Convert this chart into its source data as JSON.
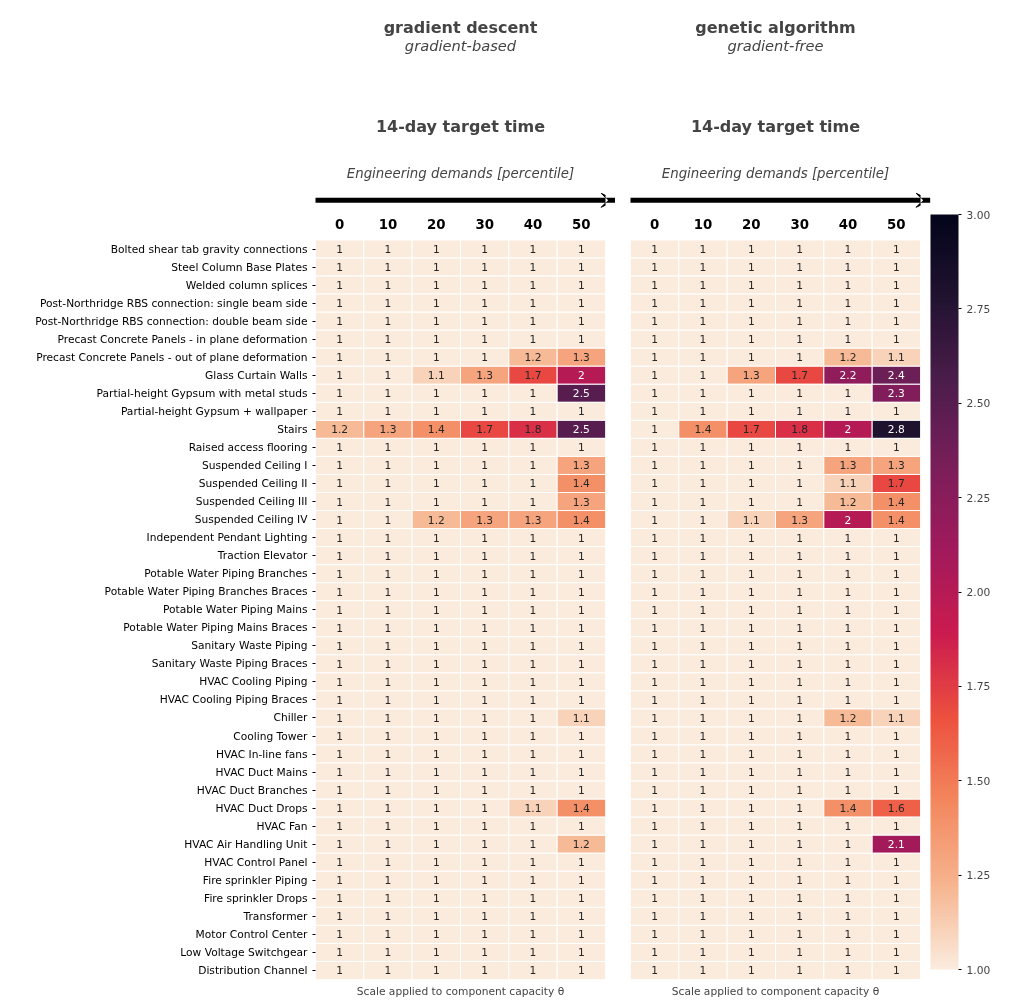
{
  "chart_data": [
    {
      "type": "heatmap",
      "xlabel": "Scale applied to component capacity θ",
      "data_labels": true,
      "annotations": [
        "gradient descent",
        "gradient-based",
        "14-day target time",
        "Engineering demands [percentile]"
      ],
      "categories": [
        "0",
        "10",
        "20",
        "30",
        "40",
        "50"
      ],
      "y_categories": [
        "Bolted shear tab gravity connections",
        "Steel Column Base Plates",
        "Welded column splices",
        "Post-Northridge RBS connection: single beam side",
        "Post-Northridge RBS connection: double beam side",
        "Precast Concrete Panels - in plane deformation",
        "Precast Concrete Panels - out of plane deformation",
        "Glass Curtain Walls",
        "Partial-height Gypsum with metal studs",
        "Partial-height Gypsum + wallpaper",
        "Stairs",
        "Raised access flooring",
        "Suspended Ceiling I",
        "Suspended Ceiling II",
        "Suspended Ceiling III",
        "Suspended Ceiling IV",
        "Independent Pendant Lighting",
        "Traction Elevator",
        "Potable Water Piping Branches",
        "Potable Water Piping Branches Braces",
        "Potable Water Piping Mains",
        "Potable Water Piping Mains Braces",
        "Sanitary Waste Piping",
        "Sanitary Waste Piping Braces",
        "HVAC Cooling Piping",
        "HVAC Cooling Piping Braces",
        "Chiller",
        "Cooling Tower",
        "HVAC In-line fans",
        "HVAC Duct Mains",
        "HVAC Duct Branches",
        "HVAC Duct Drops",
        "HVAC Fan",
        "HVAC Air Handling Unit",
        "HVAC Control Panel",
        "Fire sprinkler Piping",
        "Fire sprinkler Drops",
        "Transformer",
        "Motor Control Center",
        "Low Voltage Switchgear",
        "Distribution Channel"
      ],
      "cells": [
        [
          1,
          1,
          1,
          1,
          1,
          1
        ],
        [
          1,
          1,
          1,
          1,
          1,
          1
        ],
        [
          1,
          1,
          1,
          1,
          1,
          1
        ],
        [
          1,
          1,
          1,
          1,
          1,
          1
        ],
        [
          1,
          1,
          1,
          1,
          1,
          1
        ],
        [
          1,
          1,
          1,
          1,
          1,
          1
        ],
        [
          1,
          1,
          1,
          1,
          1.2,
          1.3
        ],
        [
          1,
          1,
          1.1,
          1.3,
          1.7,
          2
        ],
        [
          1,
          1,
          1,
          1,
          1,
          2.5
        ],
        [
          1,
          1,
          1,
          1,
          1,
          1
        ],
        [
          1.2,
          1.3,
          1.4,
          1.7,
          1.8,
          2.5
        ],
        [
          1,
          1,
          1,
          1,
          1,
          1
        ],
        [
          1,
          1,
          1,
          1,
          1,
          1.3
        ],
        [
          1,
          1,
          1,
          1,
          1,
          1.4
        ],
        [
          1,
          1,
          1,
          1,
          1,
          1.3
        ],
        [
          1,
          1,
          1.2,
          1.3,
          1.3,
          1.4
        ],
        [
          1,
          1,
          1,
          1,
          1,
          1
        ],
        [
          1,
          1,
          1,
          1,
          1,
          1
        ],
        [
          1,
          1,
          1,
          1,
          1,
          1
        ],
        [
          1,
          1,
          1,
          1,
          1,
          1
        ],
        [
          1,
          1,
          1,
          1,
          1,
          1
        ],
        [
          1,
          1,
          1,
          1,
          1,
          1
        ],
        [
          1,
          1,
          1,
          1,
          1,
          1
        ],
        [
          1,
          1,
          1,
          1,
          1,
          1
        ],
        [
          1,
          1,
          1,
          1,
          1,
          1
        ],
        [
          1,
          1,
          1,
          1,
          1,
          1
        ],
        [
          1,
          1,
          1,
          1,
          1,
          1.1
        ],
        [
          1,
          1,
          1,
          1,
          1,
          1
        ],
        [
          1,
          1,
          1,
          1,
          1,
          1
        ],
        [
          1,
          1,
          1,
          1,
          1,
          1
        ],
        [
          1,
          1,
          1,
          1,
          1,
          1
        ],
        [
          1,
          1,
          1,
          1,
          1.1,
          1.4
        ],
        [
          1,
          1,
          1,
          1,
          1,
          1
        ],
        [
          1,
          1,
          1,
          1,
          1,
          1.2
        ],
        [
          1,
          1,
          1,
          1,
          1,
          1
        ],
        [
          1,
          1,
          1,
          1,
          1,
          1
        ],
        [
          1,
          1,
          1,
          1,
          1,
          1
        ],
        [
          1,
          1,
          1,
          1,
          1,
          1
        ],
        [
          1,
          1,
          1,
          1,
          1,
          1
        ],
        [
          1,
          1,
          1,
          1,
          1,
          1
        ],
        [
          1,
          1,
          1,
          1,
          1,
          1
        ]
      ]
    },
    {
      "type": "heatmap",
      "xlabel": "Scale applied to component capacity θ",
      "data_labels": true,
      "tick_labels": "x",
      "annotations": [
        "genetic algorithm",
        "gradient-free",
        "14-day target time",
        "Engineering demands [percentile]"
      ],
      "categories": [
        "0",
        "10",
        "20",
        "30",
        "40",
        "50"
      ],
      "y_categories": [
        null,
        null,
        null,
        null,
        null,
        null,
        null,
        null,
        null,
        null,
        null,
        null,
        null,
        null,
        null,
        null,
        null,
        null,
        null,
        null,
        null,
        null,
        null,
        null,
        null,
        null,
        null,
        null,
        null,
        null,
        null,
        null,
        null,
        null,
        null,
        null,
        null,
        null,
        null,
        null,
        null
      ],
      "clim": [
        1,
        3
      ],
      "cticks": [
        {
          "value": 1,
          "label": "1.00"
        },
        {
          "value": 1.25,
          "label": "1.25"
        },
        {
          "value": 1.5,
          "label": "1.50"
        },
        {
          "value": 1.75,
          "label": "1.75"
        },
        {
          "value": 2,
          "label": "2.00"
        },
        {
          "value": 2.25,
          "label": "2.25"
        },
        {
          "value": 2.5,
          "label": "2.50"
        },
        {
          "value": 2.75,
          "label": "2.75"
        },
        {
          "value": 3,
          "label": "3.00"
        }
      ],
      "cells": [
        [
          1,
          1,
          1,
          1,
          1,
          1
        ],
        [
          1,
          1,
          1,
          1,
          1,
          1
        ],
        [
          1,
          1,
          1,
          1,
          1,
          1
        ],
        [
          1,
          1,
          1,
          1,
          1,
          1
        ],
        [
          1,
          1,
          1,
          1,
          1,
          1
        ],
        [
          1,
          1,
          1,
          1,
          1,
          1
        ],
        [
          1,
          1,
          1,
          1,
          1.2,
          1.1
        ],
        [
          1,
          1,
          1.3,
          1.7,
          2.2,
          2.4
        ],
        [
          1,
          1,
          1,
          1,
          1,
          2.3
        ],
        [
          1,
          1,
          1,
          1,
          1,
          1
        ],
        [
          1,
          1.4,
          1.7,
          1.8,
          2,
          2.8
        ],
        [
          1,
          1,
          1,
          1,
          1,
          1
        ],
        [
          1,
          1,
          1,
          1,
          1.3,
          1.3
        ],
        [
          1,
          1,
          1,
          1,
          1.1,
          1.7
        ],
        [
          1,
          1,
          1,
          1,
          1.2,
          1.4
        ],
        [
          1,
          1,
          1.1,
          1.3,
          2,
          1.4
        ],
        [
          1,
          1,
          1,
          1,
          1,
          1
        ],
        [
          1,
          1,
          1,
          1,
          1,
          1
        ],
        [
          1,
          1,
          1,
          1,
          1,
          1
        ],
        [
          1,
          1,
          1,
          1,
          1,
          1
        ],
        [
          1,
          1,
          1,
          1,
          1,
          1
        ],
        [
          1,
          1,
          1,
          1,
          1,
          1
        ],
        [
          1,
          1,
          1,
          1,
          1,
          1
        ],
        [
          1,
          1,
          1,
          1,
          1,
          1
        ],
        [
          1,
          1,
          1,
          1,
          1,
          1
        ],
        [
          1,
          1,
          1,
          1,
          1,
          1
        ],
        [
          1,
          1,
          1,
          1,
          1.2,
          1.1
        ],
        [
          1,
          1,
          1,
          1,
          1,
          1
        ],
        [
          1,
          1,
          1,
          1,
          1,
          1
        ],
        [
          1,
          1,
          1,
          1,
          1,
          1
        ],
        [
          1,
          1,
          1,
          1,
          1,
          1
        ],
        [
          1,
          1,
          1,
          1,
          1.4,
          1.6
        ],
        [
          1,
          1,
          1,
          1,
          1,
          1
        ],
        [
          1,
          1,
          1,
          1,
          1,
          2.1
        ],
        [
          1,
          1,
          1,
          1,
          1,
          1
        ],
        [
          1,
          1,
          1,
          1,
          1,
          1
        ],
        [
          1,
          1,
          1,
          1,
          1,
          1
        ],
        [
          1,
          1,
          1,
          1,
          1,
          1
        ],
        [
          1,
          1,
          1,
          1,
          1,
          1
        ],
        [
          1,
          1,
          1,
          1,
          1,
          1
        ],
        [
          1,
          1,
          1,
          1,
          1,
          1
        ]
      ]
    }
  ]
}
